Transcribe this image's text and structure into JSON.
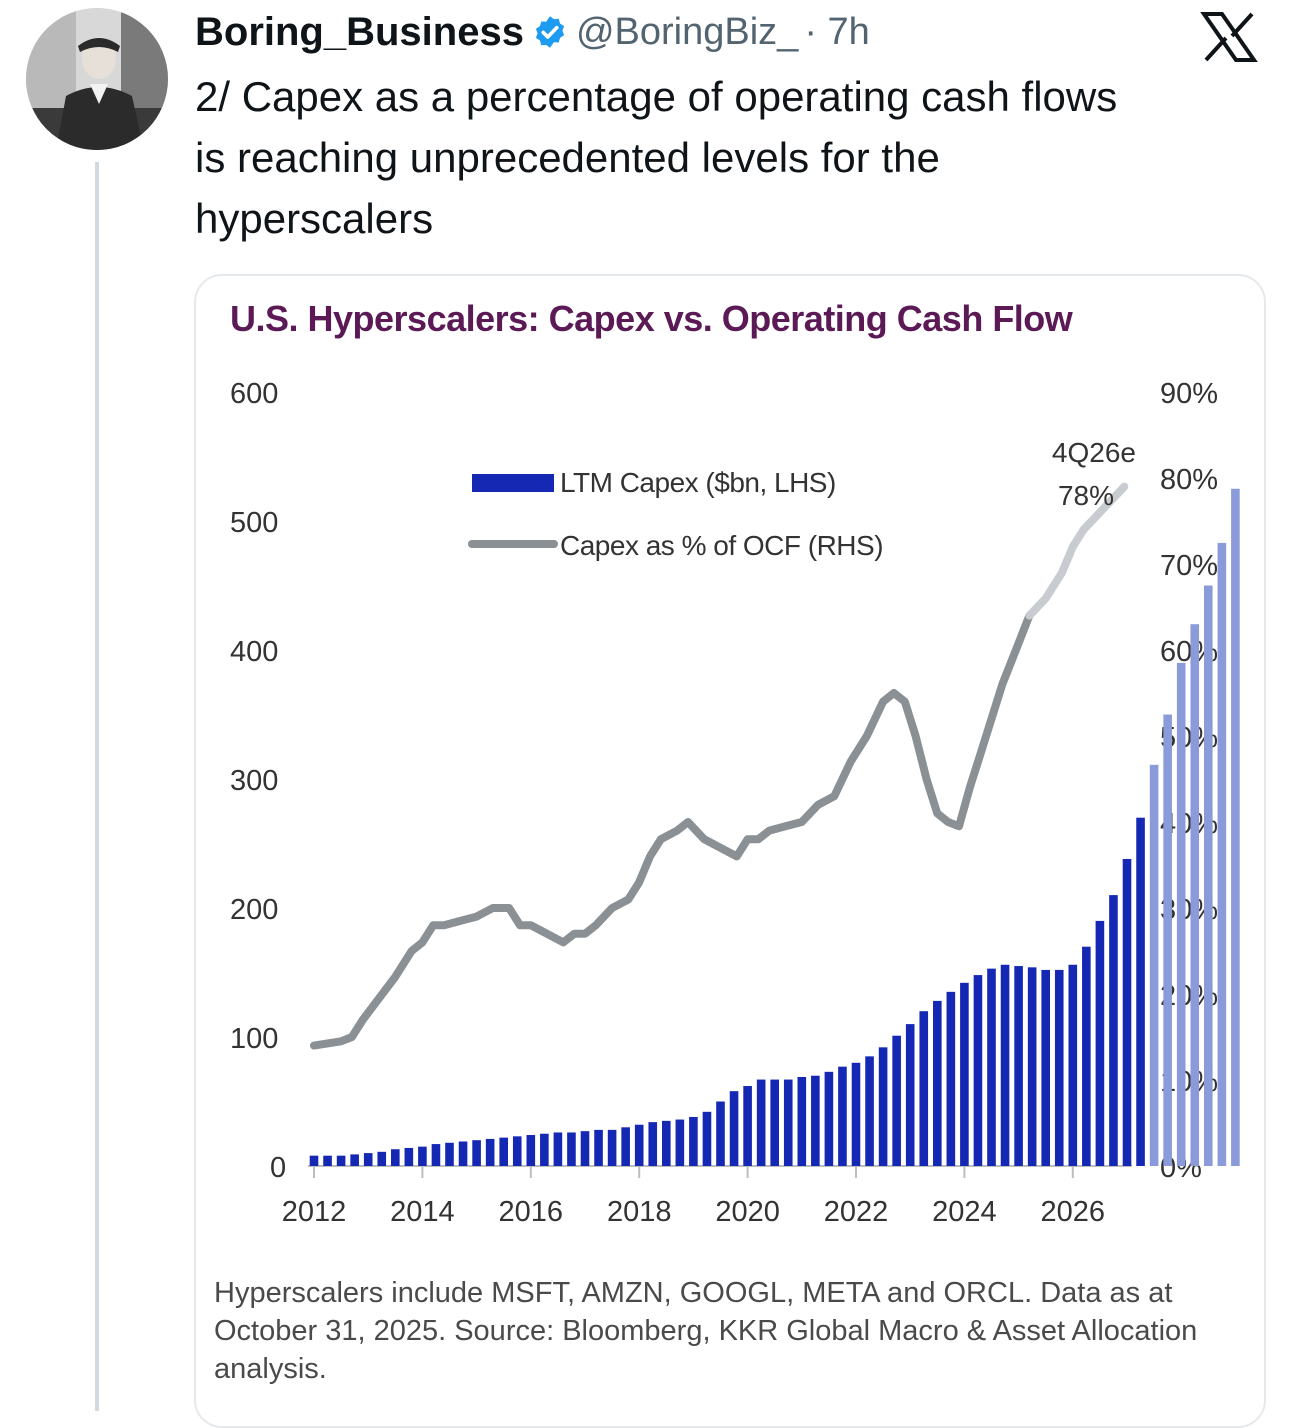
{
  "tweet": {
    "author_name": "Boring_Business",
    "handle": "@BoringBiz_",
    "time": "· 7h",
    "text_lines": [
      "2/ Capex as a percentage of operating cash flows",
      "is reaching unprecedented levels for the",
      "hyperscalers"
    ],
    "icons": {
      "verified": "verified-badge-icon",
      "platform": "x-logo-icon",
      "avatar": "avatar"
    },
    "colors": {
      "verified": "#1d9bf0",
      "text": "#0f1419",
      "muted": "#536471"
    }
  },
  "chart_data": {
    "type": "bar",
    "title": "U.S. Hyperscalers: Capex vs. Operating Cash Flow",
    "left_axis": {
      "ticks": [
        "0",
        "100",
        "200",
        "300",
        "400",
        "500",
        "600"
      ],
      "ylim": [
        0,
        600
      ]
    },
    "right_axis": {
      "ticks": [
        "0%",
        "10%",
        "20%",
        "30%",
        "40%",
        "50%",
        "60%",
        "70%",
        "80%",
        "90%"
      ],
      "ylim": [
        0,
        90
      ]
    },
    "x_tick_labels": [
      "2012",
      "2014",
      "2016",
      "2018",
      "2020",
      "2022",
      "2024",
      "2026"
    ],
    "x_tick_years": [
      2012,
      2014,
      2016,
      2018,
      2020,
      2022,
      2024,
      2026
    ],
    "legend": {
      "bars": "LTM Capex ($bn, LHS)",
      "line": "Capex as % of OCF (RHS)"
    },
    "annotation": {
      "line1": "4Q26e",
      "line2": "78%"
    },
    "colors": {
      "actual_bar": "#1428b4",
      "estimate_bar": "#8b9ad8",
      "actual_line": "#8a9094",
      "estimate_line": "#c8ccd0",
      "title": "#5b1a56"
    },
    "series": [
      {
        "name": "LTM Capex ($bn, LHS)",
        "x_start": 2012.0,
        "x_step": 0.25,
        "values": [
          8,
          8,
          8,
          9,
          10,
          11,
          13,
          14,
          15,
          17,
          18,
          19,
          20,
          21,
          22,
          23,
          24,
          25,
          26,
          26,
          27,
          28,
          28,
          30,
          32,
          34,
          35,
          36,
          38,
          42,
          50,
          58,
          62,
          67,
          67,
          67,
          69,
          70,
          73,
          77,
          80,
          85,
          92,
          101,
          110,
          120,
          128,
          135,
          142,
          148,
          153,
          156,
          155,
          154,
          152,
          152,
          156,
          170,
          190,
          210,
          238,
          270,
          311,
          350,
          390,
          420,
          450,
          483,
          525
        ],
        "estimate_from_index": 62
      },
      {
        "name": "Capex as % of OCF (RHS)",
        "x": [
          2012.0,
          2012.5,
          2012.7,
          2012.9,
          2013.2,
          2013.5,
          2013.8,
          2014.0,
          2014.2,
          2014.4,
          2014.7,
          2015.0,
          2015.3,
          2015.6,
          2015.8,
          2016.0,
          2016.3,
          2016.6,
          2016.8,
          2017.0,
          2017.2,
          2017.5,
          2017.8,
          2018.0,
          2018.2,
          2018.4,
          2018.7,
          2018.9,
          2019.2,
          2019.5,
          2019.8,
          2020.0,
          2020.2,
          2020.4,
          2020.7,
          2021.0,
          2021.3,
          2021.6,
          2021.9,
          2022.2,
          2022.5,
          2022.7,
          2022.9,
          2023.1,
          2023.3,
          2023.5,
          2023.7,
          2023.9,
          2024.1,
          2024.3,
          2024.5,
          2024.7,
          2024.95,
          2025.2,
          2025.5,
          2025.8,
          2026.0,
          2026.2,
          2026.5,
          2026.8,
          2026.95
        ],
        "values": [
          14,
          14.5,
          15,
          17,
          19.5,
          22,
          25,
          26,
          28,
          28,
          28.5,
          29,
          30,
          30,
          28,
          28,
          27,
          26,
          27,
          27,
          28,
          30,
          31,
          33,
          36,
          38,
          39,
          40,
          38,
          37,
          36,
          38,
          38,
          39,
          39.5,
          40,
          42,
          43,
          47,
          50,
          54,
          55,
          54,
          50,
          45,
          41,
          40,
          39.5,
          44,
          48,
          52,
          56,
          60,
          64,
          66,
          69,
          72,
          74,
          76,
          78,
          79
        ],
        "estimate_from_index": 53
      }
    ]
  },
  "footnote": "Hyperscalers include MSFT, AMZN, GOOGL, META and ORCL. Data as at October 31, 2025. Source: Bloomberg, KKR Global Macro & Asset Allocation analysis."
}
